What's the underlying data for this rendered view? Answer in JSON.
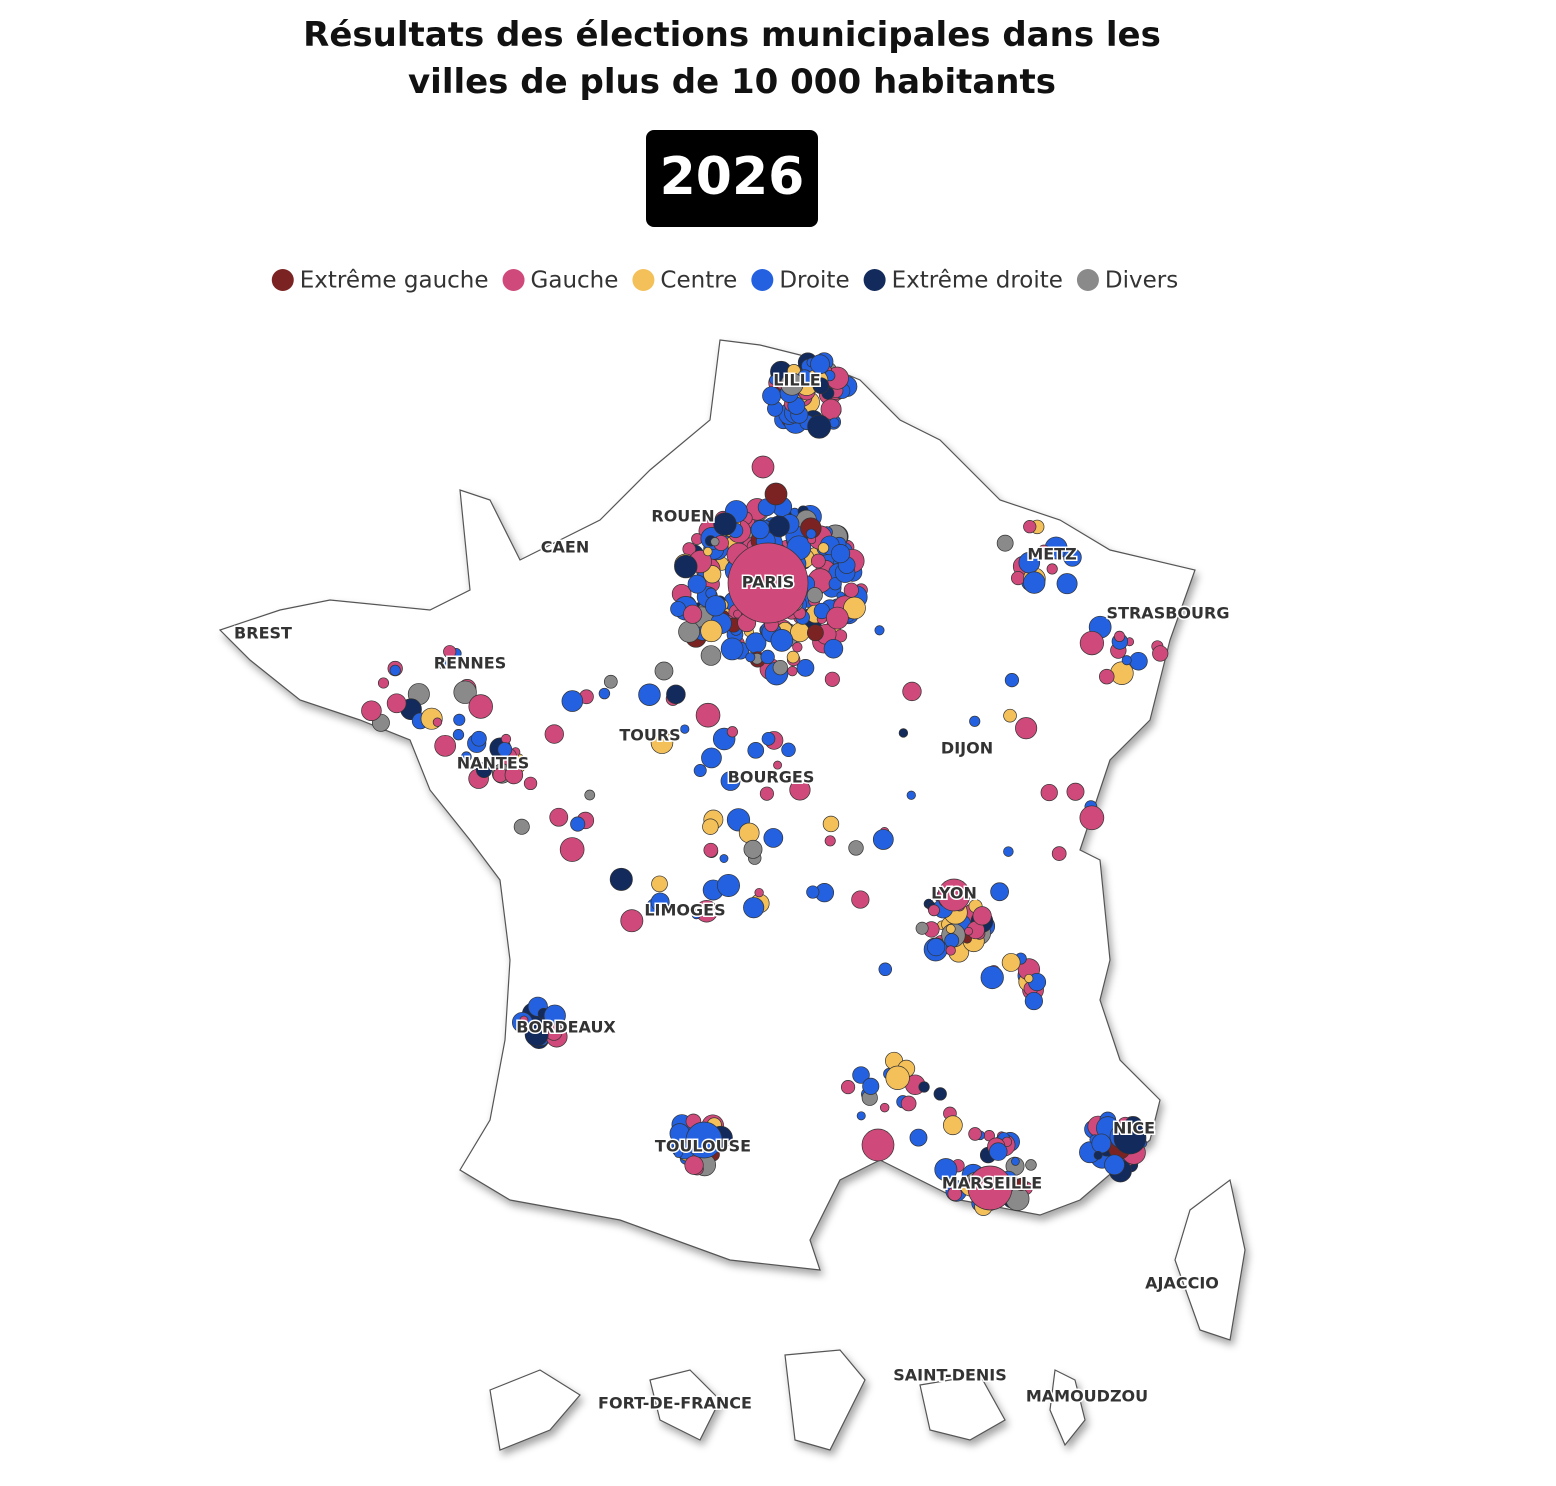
{
  "header": {
    "title_lines": [
      "Résultats des élections municipales dans les",
      "villes de plus de 10 000 habitants"
    ],
    "year": "2026"
  },
  "legend": [
    {
      "name": "Extrême gauche",
      "color": "#7b2323"
    },
    {
      "name": "Gauche",
      "color": "#cf4a7b"
    },
    {
      "name": "Centre",
      "color": "#f4c05a"
    },
    {
      "name": "Droite",
      "color": "#2361e0"
    },
    {
      "name": "Extrême droite",
      "color": "#132a5c"
    },
    {
      "name": "Divers",
      "color": "#8a8a8a"
    }
  ],
  "cities": [
    "LILLE",
    "ROUEN",
    "CAEN",
    "PARIS",
    "METZ",
    "STRASBOURG",
    "BREST",
    "RENNES",
    "TOURS",
    "DIJON",
    "NANTES",
    "BOURGES",
    "LYON",
    "LIMOGES",
    "BORDEAUX",
    "NICE",
    "TOULOUSE",
    "MARSEILLE",
    "AJACCIO",
    "SAINT-DENIS",
    "FORT-DE-FRANCE",
    "MAMOUDZOU"
  ]
}
